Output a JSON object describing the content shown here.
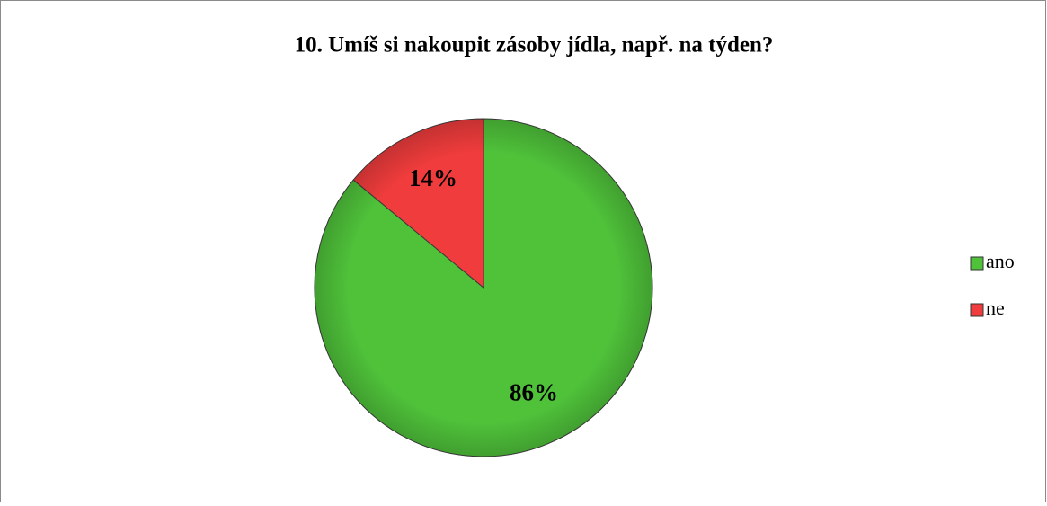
{
  "chart_data": {
    "type": "pie",
    "title": "10. Umíš si nakoupit zásoby jídla, např. na týden?",
    "categories": [
      "ano",
      "ne"
    ],
    "values": [
      86,
      14
    ],
    "value_labels": [
      "86%",
      "14%"
    ],
    "colors": [
      "#4fc23a",
      "#f03c3c"
    ],
    "legend": "right"
  }
}
